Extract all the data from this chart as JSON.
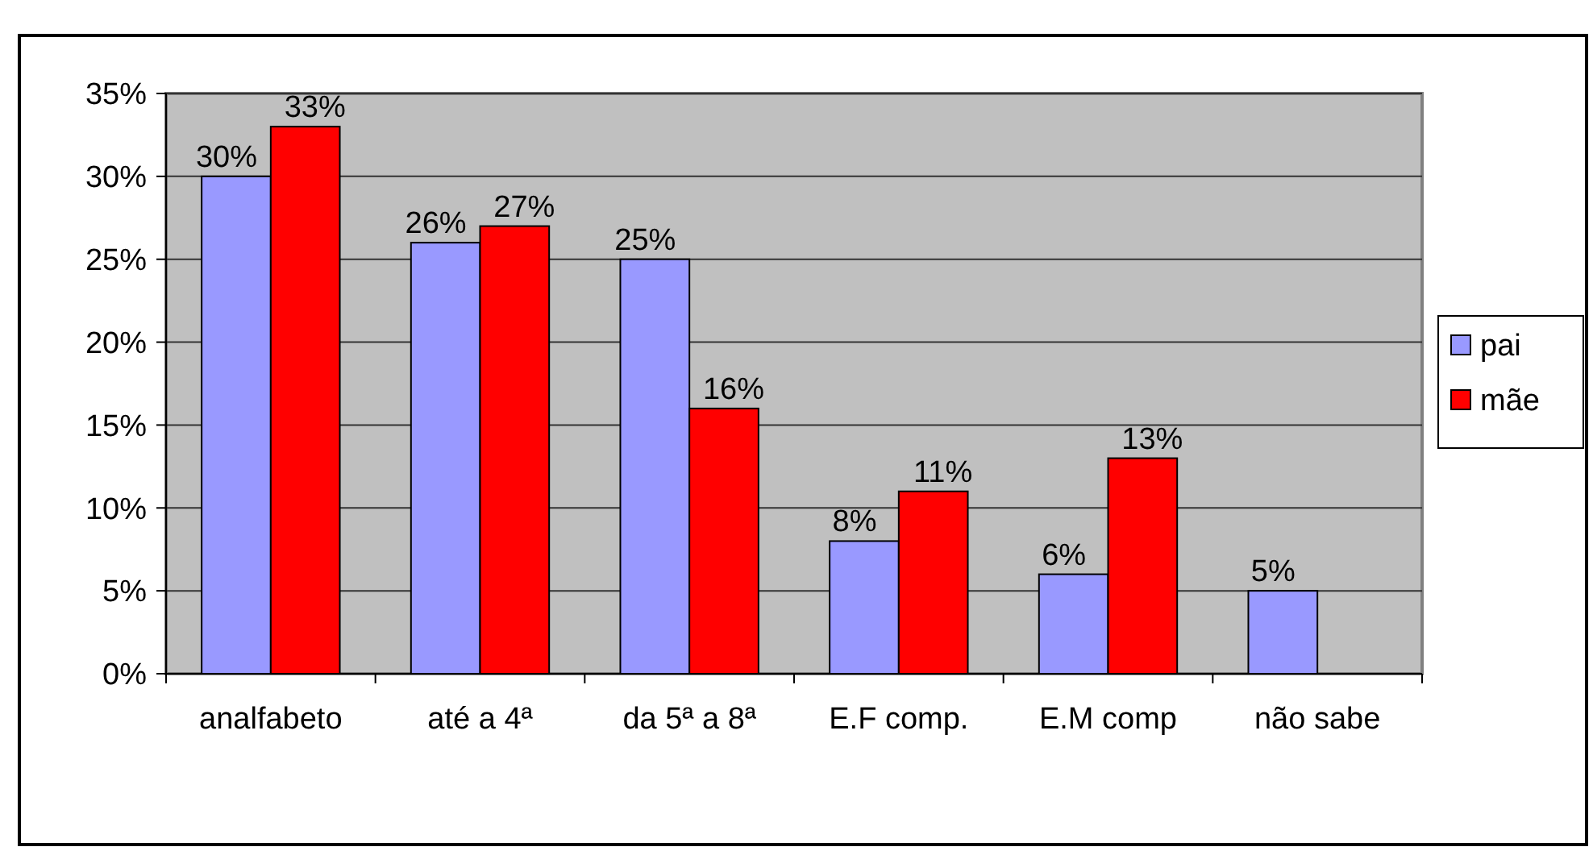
{
  "chart_data": {
    "type": "bar",
    "categories": [
      "analfabeto",
      "até a 4ª",
      "da 5ª a 8ª",
      "E.F comp.",
      "E.M comp",
      "não sabe"
    ],
    "series": [
      {
        "name": "pai",
        "color": "#9999ff",
        "values": [
          30,
          26,
          25,
          8,
          6,
          5
        ],
        "value_labels": [
          "30%",
          "26%",
          "25%",
          "8%",
          "6%",
          "5%"
        ]
      },
      {
        "name": "mãe",
        "color": "#ff0000",
        "values": [
          33,
          27,
          16,
          11,
          13,
          null
        ],
        "value_labels": [
          "33%",
          "27%",
          "16%",
          "11%",
          "13%",
          null
        ]
      }
    ],
    "ylim": [
      0,
      35
    ],
    "yticks": [
      {
        "value": 0,
        "label": "0%"
      },
      {
        "value": 5,
        "label": "5%"
      },
      {
        "value": 10,
        "label": "10%"
      },
      {
        "value": 15,
        "label": "15%"
      },
      {
        "value": 20,
        "label": "20%"
      },
      {
        "value": 25,
        "label": "25%"
      },
      {
        "value": 30,
        "label": "30%"
      },
      {
        "value": 35,
        "label": "35%"
      }
    ],
    "grid": "y",
    "legend": "right"
  }
}
